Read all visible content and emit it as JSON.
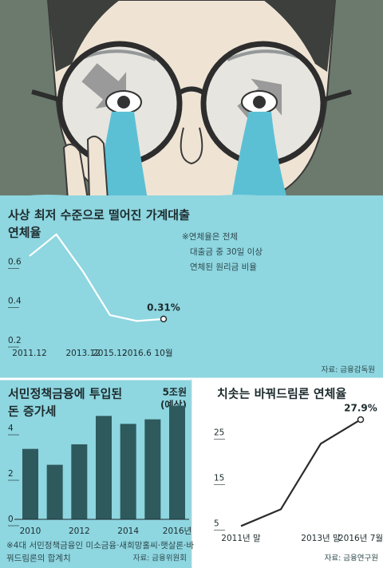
{
  "chart_data": [
    {
      "type": "line",
      "title": [
        "사상 최저 수준으로 떨어진 가계대출",
        "연체율"
      ],
      "note": [
        "※연체율은 전체",
        "대출금 중 30일 이상",
        "연체된 원리금 비율"
      ],
      "source": "자료: 금융감독원",
      "categories": [
        "2011.12",
        null,
        "2013.12",
        "2015.12",
        "2016.6",
        "10월"
      ],
      "values": [
        0.63,
        0.74,
        0.55,
        0.33,
        0.3,
        0.31
      ],
      "value_labels": [
        null,
        null,
        null,
        null,
        null,
        "0.31%"
      ],
      "color": "#ffffff",
      "ylim": [
        0.2,
        0.8
      ],
      "yticks": [
        0.2,
        0.4,
        0.6
      ],
      "grid": false
    },
    {
      "type": "bar",
      "title": [
        "서민정책금융에 투입된",
        "돈 증가세"
      ],
      "annotation": [
        "5조원",
        "(예상)"
      ],
      "footnote": [
        "※4대 서민정책금융인 미소금융·새희망홀씨·햇살론·바",
        "꿔드림론의 합계치"
      ],
      "source": "자료: 금융위원회",
      "categories": [
        "2010",
        null,
        "2012",
        null,
        "2014",
        null,
        "2016년"
      ],
      "values": [
        3.1,
        2.4,
        3.3,
        4.55,
        4.2,
        4.4,
        5
      ],
      "color": "#2e5a5e",
      "ylim": [
        0,
        5.3
      ],
      "yticks": [
        0,
        2,
        4
      ],
      "grid": false
    },
    {
      "type": "line",
      "title": "치솟는 바꿔드림론 연체율",
      "source": "자료: 금융연구원",
      "categories": [
        "2011년 말",
        null,
        "2013년 말",
        "2016년 7월"
      ],
      "values": [
        4.5,
        8.2,
        22.6,
        27.9
      ],
      "value_labels": [
        null,
        null,
        null,
        "27.9%"
      ],
      "color": "#2b2b2b",
      "ylim": [
        3,
        30
      ],
      "yticks": [
        5,
        15,
        25
      ],
      "grid": false
    }
  ]
}
